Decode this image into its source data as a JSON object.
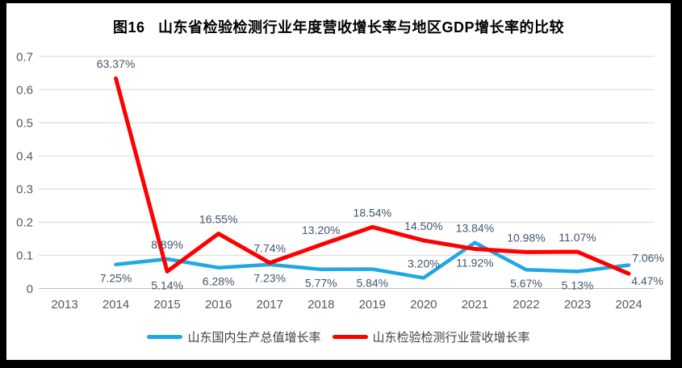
{
  "styles": {
    "page_bg": "#000000",
    "panel_bg": "#FFFFFF",
    "gridline_color": "#D9D9D9",
    "zero_line_color": "#BFBFBF",
    "axis_label_color": "#595959",
    "data_label_color": "#44546A",
    "title_color": "#000000",
    "legend_text_color": "#404040"
  },
  "chart_data": {
    "type": "line",
    "title": "图16   山东省检验检测行业年度营收增长率与地区GDP增长率的比较",
    "x_categories": [
      "2013",
      "2014",
      "2015",
      "2016",
      "2017",
      "2018",
      "2019",
      "2020",
      "2021",
      "2022",
      "2023",
      "2024"
    ],
    "y_ticks": [
      "0",
      "0.1",
      "0.2",
      "0.3",
      "0.4",
      "0.5",
      "0.6",
      "0.7"
    ],
    "ylim": [
      0,
      0.7
    ],
    "grid": true,
    "legend_position": "bottom",
    "series": [
      {
        "name": "山东国内生产总值增长率",
        "color": "#1FA8E3",
        "line_width": 4.5,
        "x": [
          "2014",
          "2015",
          "2016",
          "2017",
          "2018",
          "2019",
          "2020",
          "2021",
          "2022",
          "2023",
          "2024"
        ],
        "values_percent": [
          7.25,
          8.89,
          6.28,
          7.23,
          5.77,
          5.84,
          3.2,
          13.84,
          5.67,
          5.13,
          7.06
        ],
        "labels": [
          "7.25%",
          "8.89%",
          "6.28%",
          "7.23%",
          "5.77%",
          "5.84%",
          "3.20%",
          "13.84%",
          "5.67%",
          "5.13%",
          "7.06%"
        ],
        "label_placement": [
          "below",
          "above",
          "below",
          "below",
          "below",
          "below",
          "above",
          "above",
          "below",
          "below",
          "right-up"
        ]
      },
      {
        "name": "山东检验检测行业营收增长率",
        "color": "#FE0000",
        "line_width": 5,
        "x": [
          "2014",
          "2015",
          "2016",
          "2017",
          "2018",
          "2019",
          "2020",
          "2021",
          "2022",
          "2023",
          "2024"
        ],
        "values_percent": [
          63.37,
          5.14,
          16.55,
          7.74,
          13.2,
          18.54,
          14.5,
          11.92,
          10.98,
          11.07,
          4.47
        ],
        "labels": [
          "63.37%",
          "5.14%",
          "16.55%",
          "7.74%",
          "13.20%",
          "18.54%",
          "14.50%",
          "11.92%",
          "10.98%",
          "11.07%",
          "4.47%"
        ],
        "label_placement": [
          "above",
          "below",
          "above",
          "above",
          "above",
          "above",
          "above",
          "below",
          "above",
          "above",
          "right-down"
        ]
      }
    ]
  }
}
